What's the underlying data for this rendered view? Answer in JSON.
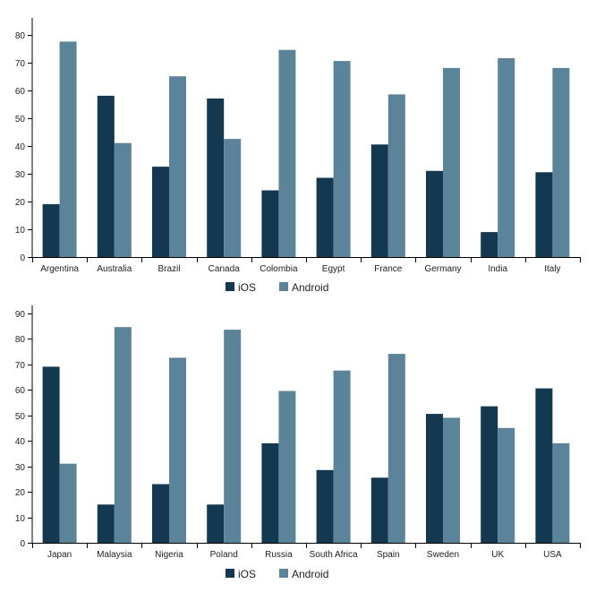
{
  "colors": {
    "ios": "#143850",
    "android": "#5b849b",
    "axis": "#000000"
  },
  "legend": {
    "ios_label": "iOS",
    "android_label": "Android",
    "placement": "bottom-center"
  },
  "chart_data": [
    {
      "type": "bar",
      "categories": [
        "Argentina",
        "Australia",
        "Brazil",
        "Canada",
        "Colombia",
        "Egypt",
        "France",
        "Germany",
        "India",
        "Italy"
      ],
      "series": [
        {
          "name": "iOS",
          "values": [
            19,
            58,
            32.5,
            57,
            24,
            28.5,
            40.5,
            31,
            9,
            30.5
          ]
        },
        {
          "name": "Android",
          "values": [
            77.5,
            41,
            65,
            42.5,
            74.5,
            70.5,
            58.5,
            68,
            71.5,
            68
          ]
        }
      ],
      "yticks": [
        0,
        10,
        20,
        30,
        40,
        50,
        60,
        70,
        80
      ],
      "ylim": [
        0,
        86
      ],
      "grid": false,
      "title": "",
      "xlabel": "",
      "ylabel": ""
    },
    {
      "type": "bar",
      "categories": [
        "Japan",
        "Malaysia",
        "Nigeria",
        "Poland",
        "Russia",
        "South Africa",
        "Spain",
        "Sweden",
        "UK",
        "USA"
      ],
      "series": [
        {
          "name": "iOS",
          "values": [
            69,
            15,
            23,
            15,
            39,
            28.5,
            25.5,
            50.5,
            53.5,
            60.5
          ]
        },
        {
          "name": "Android",
          "values": [
            31,
            84.5,
            72.5,
            83.5,
            59.5,
            67.5,
            74,
            49,
            45,
            39
          ]
        }
      ],
      "yticks": [
        0,
        10,
        20,
        30,
        40,
        50,
        60,
        70,
        80,
        90
      ],
      "ylim": [
        0,
        93
      ],
      "grid": false,
      "title": "",
      "xlabel": "",
      "ylabel": ""
    }
  ]
}
